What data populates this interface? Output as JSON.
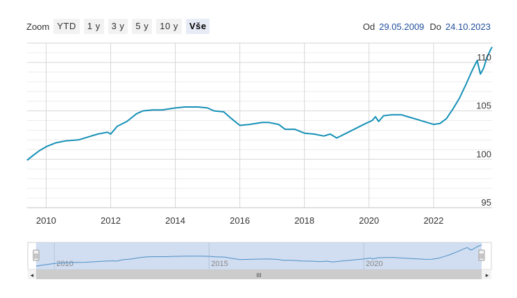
{
  "range_selector": {
    "zoom_label": "Zoom",
    "buttons": [
      "YTD",
      "1 y",
      "3 y",
      "5 y",
      "10 y",
      "Vše"
    ],
    "active_index": 5
  },
  "date_range": {
    "from_label": "Od",
    "from_value": "29.05.2009",
    "to_label": "Do",
    "to_value": "24.10.2023"
  },
  "colors": {
    "series": "#1590b6",
    "grid": "#e0e0e0",
    "navigator_mask": "#c6d5ec",
    "navigator_series": "#4a90c8"
  },
  "chart_data": {
    "type": "line",
    "x_type": "year",
    "ylim": [
      95,
      112
    ],
    "xlim": [
      2009.41,
      2023.81
    ],
    "y_ticks": [
      95,
      100,
      105,
      110
    ],
    "x_ticks": [
      2010,
      2012,
      2014,
      2016,
      2018,
      2020,
      2022
    ],
    "grid": true,
    "series": [
      {
        "points": [
          [
            2009.41,
            99.9
          ],
          [
            2009.6,
            100.4
          ],
          [
            2009.8,
            100.9
          ],
          [
            2010.0,
            101.3
          ],
          [
            2010.3,
            101.7
          ],
          [
            2010.6,
            101.9
          ],
          [
            2011.0,
            102.0
          ],
          [
            2011.3,
            102.3
          ],
          [
            2011.6,
            102.6
          ],
          [
            2011.9,
            102.8
          ],
          [
            2012.0,
            102.6
          ],
          [
            2012.2,
            103.4
          ],
          [
            2012.5,
            103.9
          ],
          [
            2012.8,
            104.7
          ],
          [
            2013.0,
            105.0
          ],
          [
            2013.3,
            105.1
          ],
          [
            2013.6,
            105.1
          ],
          [
            2014.0,
            105.3
          ],
          [
            2014.3,
            105.4
          ],
          [
            2014.7,
            105.4
          ],
          [
            2015.0,
            105.3
          ],
          [
            2015.2,
            105.0
          ],
          [
            2015.5,
            104.9
          ],
          [
            2015.7,
            104.3
          ],
          [
            2016.0,
            103.5
          ],
          [
            2016.3,
            103.6
          ],
          [
            2016.7,
            103.8
          ],
          [
            2016.9,
            103.8
          ],
          [
            2017.2,
            103.6
          ],
          [
            2017.4,
            103.1
          ],
          [
            2017.7,
            103.1
          ],
          [
            2018.0,
            102.7
          ],
          [
            2018.3,
            102.6
          ],
          [
            2018.6,
            102.4
          ],
          [
            2018.8,
            102.6
          ],
          [
            2019.0,
            102.2
          ],
          [
            2019.3,
            102.7
          ],
          [
            2019.6,
            103.2
          ],
          [
            2019.9,
            103.7
          ],
          [
            2020.1,
            104.0
          ],
          [
            2020.2,
            104.4
          ],
          [
            2020.3,
            103.9
          ],
          [
            2020.45,
            104.5
          ],
          [
            2020.7,
            104.6
          ],
          [
            2021.0,
            104.6
          ],
          [
            2021.2,
            104.4
          ],
          [
            2021.5,
            104.1
          ],
          [
            2021.8,
            103.8
          ],
          [
            2022.0,
            103.6
          ],
          [
            2022.2,
            103.7
          ],
          [
            2022.4,
            104.2
          ],
          [
            2022.6,
            105.2
          ],
          [
            2022.8,
            106.3
          ],
          [
            2023.0,
            107.7
          ],
          [
            2023.2,
            109.2
          ],
          [
            2023.35,
            110.2
          ],
          [
            2023.45,
            108.8
          ],
          [
            2023.55,
            109.4
          ],
          [
            2023.65,
            110.5
          ],
          [
            2023.75,
            111.2
          ],
          [
            2023.81,
            111.6
          ]
        ]
      }
    ]
  },
  "navigator": {
    "labels": [
      "2010",
      "2015",
      "2020"
    ],
    "label_years": [
      2010,
      2015,
      2020
    ],
    "scroll_left": "◂",
    "scroll_right": "▸",
    "grip": "III",
    "handle_grip": "|||"
  }
}
